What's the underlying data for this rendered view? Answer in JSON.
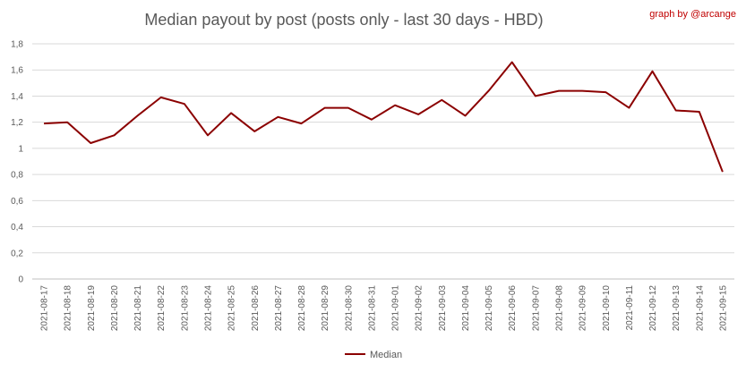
{
  "chart_data": {
    "type": "line",
    "title": "Median payout by post (posts only - last 30 days - HBD)",
    "credit": "graph by @arcange",
    "xlabel": "",
    "ylabel": "",
    "ylim": [
      0,
      1.8
    ],
    "yticks": [
      "0",
      "0,2",
      "0,4",
      "0,6",
      "0,8",
      "1",
      "1,2",
      "1,4",
      "1,6",
      "1,8"
    ],
    "grid": true,
    "legend_position": "bottom",
    "categories": [
      "2021-08-17",
      "2021-08-18",
      "2021-08-19",
      "2021-08-20",
      "2021-08-21",
      "2021-08-22",
      "2021-08-23",
      "2021-08-24",
      "2021-08-25",
      "2021-08-26",
      "2021-08-27",
      "2021-08-28",
      "2021-08-29",
      "2021-08-30",
      "2021-08-31",
      "2021-09-01",
      "2021-09-02",
      "2021-09-03",
      "2021-09-04",
      "2021-09-05",
      "2021-09-06",
      "2021-09-07",
      "2021-09-08",
      "2021-09-09",
      "2021-09-10",
      "2021-09-11",
      "2021-09-12",
      "2021-09-13",
      "2021-09-14",
      "2021-09-15"
    ],
    "series": [
      {
        "name": "Median",
        "color": "#8b0000",
        "values": [
          1.19,
          1.2,
          1.04,
          1.1,
          1.25,
          1.39,
          1.34,
          1.1,
          1.27,
          1.13,
          1.24,
          1.19,
          1.31,
          1.31,
          1.22,
          1.33,
          1.26,
          1.37,
          1.25,
          1.44,
          1.66,
          1.4,
          1.44,
          1.44,
          1.43,
          1.31,
          1.59,
          1.29,
          1.28,
          0.82
        ]
      }
    ]
  }
}
